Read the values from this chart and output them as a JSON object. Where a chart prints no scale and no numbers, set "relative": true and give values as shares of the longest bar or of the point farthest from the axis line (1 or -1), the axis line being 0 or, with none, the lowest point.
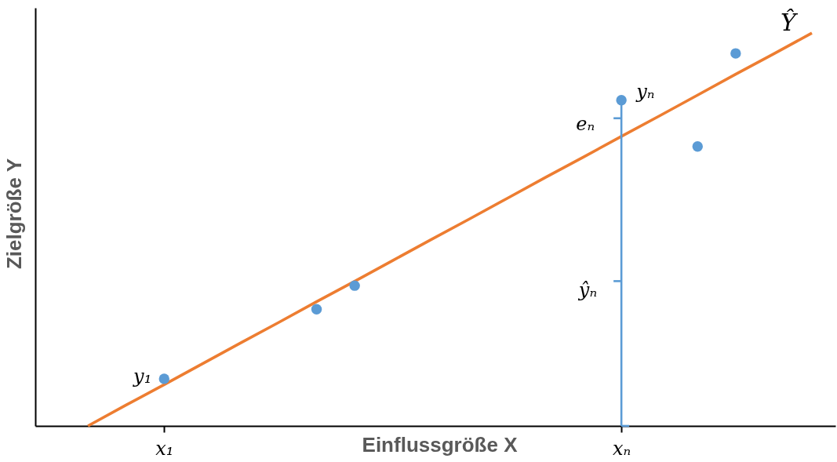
{
  "chart_data": {
    "type": "scatter",
    "xlabel": "Einflussgröße X",
    "ylabel": "Zielgröße Y",
    "relative": true,
    "categories": [
      null,
      null,
      "x₁",
      null,
      null,
      null,
      null,
      null,
      null,
      null,
      null,
      null,
      null,
      null,
      "xₙ",
      null,
      null,
      null,
      null,
      null
    ],
    "series": [
      {
        "marker": "circle",
        "color": "#5b9bd5",
        "values": [
          null,
          null,
          0.12,
          null,
          null,
          null,
          0.297,
          0.357,
          null,
          null,
          null,
          null,
          null,
          null,
          null,
          null,
          0.711,
          0.948,
          null,
          null
        ]
      },
      {
        "type": "lollipop",
        "marker": "circle",
        "color": "#5b9bd5",
        "values": [
          null,
          null,
          null,
          null,
          null,
          null,
          null,
          null,
          null,
          null,
          null,
          null,
          null,
          null,
          0.829,
          null,
          null,
          null,
          null,
          null
        ]
      },
      {
        "type": "line",
        "name": "Ŷ",
        "color": "#ed7d31",
        "values": [
          0,
          0.053,
          0.105,
          0.158,
          0.211,
          0.263,
          0.316,
          0.368,
          0.421,
          0.474,
          0.526,
          0.579,
          0.632,
          0.684,
          0.737,
          0.789,
          0.842,
          0.895,
          0.947,
          1
        ]
      }
    ],
    "annotations": [
      {
        "text": "y₁",
        "x": "x₁",
        "y": 0.12
      },
      {
        "text": "yₙ",
        "x": "xₙ",
        "y": 0.829
      },
      "eₙ",
      "ŷₙ"
    ]
  }
}
